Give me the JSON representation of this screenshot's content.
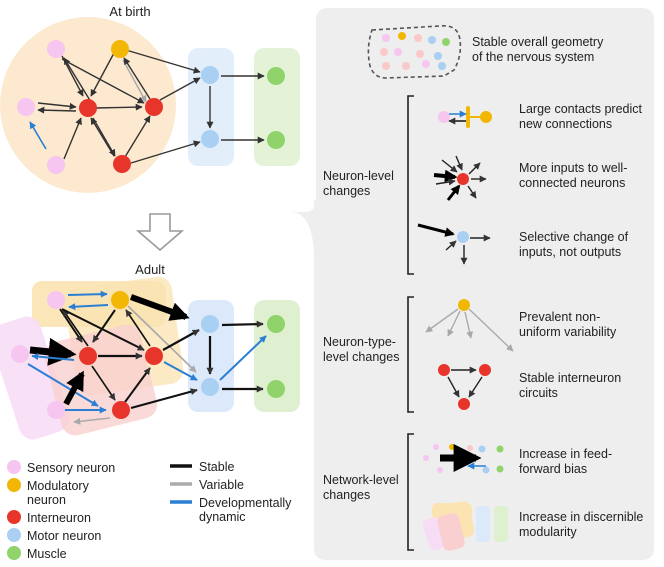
{
  "panels": {
    "birth_title": "At birth",
    "adult_title": "Adult"
  },
  "legend": {
    "node_types": [
      {
        "label": "Sensory neuron",
        "color": "#f6c6f0"
      },
      {
        "label": "Modulatory neuron",
        "color": "#f2b705"
      },
      {
        "label": "Interneuron",
        "color": "#e8352b"
      },
      {
        "label": "Motor neuron",
        "color": "#a9cff3"
      },
      {
        "label": "Muscle",
        "color": "#8fd36a"
      }
    ],
    "edge_types": [
      {
        "label": "Stable",
        "color": "#111111"
      },
      {
        "label": "Variable",
        "color": "#aaaaaa"
      },
      {
        "label": "Developmentally dynamic",
        "color": "#2a7fd4"
      }
    ]
  },
  "findings": {
    "overall": "Stable overall geometry of the nervous system",
    "neuron_level": {
      "label": "Neuron-level changes",
      "items": [
        "Large contacts predict new connections",
        "More inputs to well-connected neurons",
        "Selective change of inputs, not outputs"
      ]
    },
    "neuron_type_level": {
      "label": "Neuron-type-level changes",
      "items": [
        "Prevalent non-uniform variability",
        "Stable interneuron circuits"
      ]
    },
    "network_level": {
      "label": "Network-level changes",
      "items": [
        "Increase in feed-forward bias",
        "Increase in discernible modularity"
      ]
    }
  }
}
